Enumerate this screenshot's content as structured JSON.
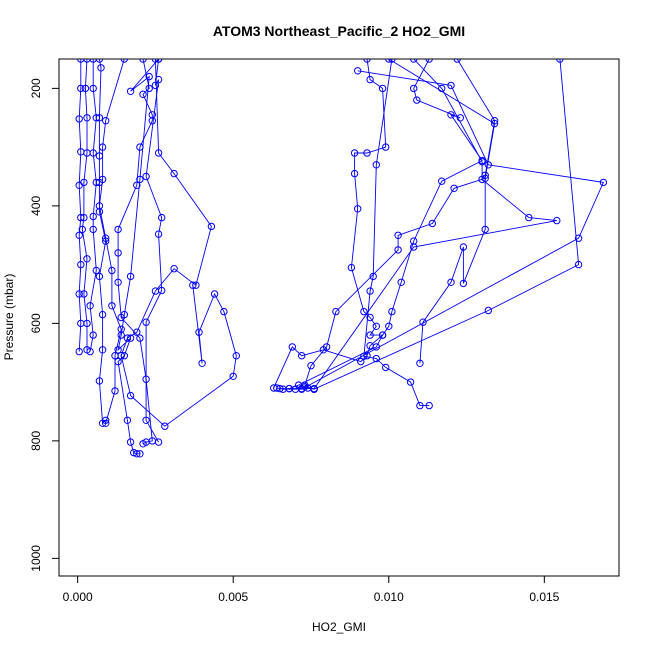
{
  "chart_data": {
    "type": "line",
    "title": "ATOM3 Northeast_Pacific_2 HO2_GMI",
    "xlabel": "HO2_GMI",
    "ylabel": "Pressure (mbar)",
    "xlim": [
      -0.0006,
      0.0174
    ],
    "ylim": [
      1030,
      150
    ],
    "y_reversed": true,
    "x_ticks": [
      0.0,
      0.005,
      0.01,
      0.015
    ],
    "x_tick_labels": [
      "0.000",
      "0.005",
      "0.010",
      "0.015"
    ],
    "y_ticks": [
      200,
      400,
      600,
      800,
      1000
    ],
    "y_tick_labels": [
      "200",
      "400",
      "600",
      "800",
      "1000"
    ],
    "grid": false,
    "legend": "none",
    "series_color": "#0000ff",
    "series": [
      {
        "values": [
          [
            0.0001,
            150
          ],
          [
            0.0001,
            200
          ],
          [
            5e-05,
            252
          ],
          [
            0.0001,
            308
          ],
          [
            5e-05,
            365
          ],
          [
            0.0001,
            420
          ],
          [
            5e-05,
            450
          ],
          [
            0.0001,
            500
          ],
          [
            5e-05,
            550
          ],
          [
            0.0001,
            600
          ],
          [
            5e-05,
            648
          ]
        ]
      },
      {
        "values": [
          [
            0.0003,
            150
          ],
          [
            0.00025,
            200
          ],
          [
            0.0003,
            250
          ],
          [
            0.0003,
            310
          ],
          [
            0.0002,
            360
          ],
          [
            0.0002,
            420
          ],
          [
            0.00015,
            440
          ],
          [
            0.0003,
            490
          ],
          [
            0.0002,
            550
          ],
          [
            0.0003,
            600
          ],
          [
            0.0003,
            645
          ]
        ]
      },
      {
        "values": [
          [
            0.0005,
            150
          ],
          [
            0.0005,
            200
          ],
          [
            0.0006,
            250
          ],
          [
            0.0005,
            310
          ],
          [
            0.0006,
            360
          ],
          [
            0.0005,
            418
          ],
          [
            0.0005,
            440
          ],
          [
            0.0006,
            510
          ],
          [
            0.0004,
            570
          ],
          [
            0.0005,
            620
          ],
          [
            0.0004,
            648
          ]
        ]
      },
      {
        "values": [
          [
            0.0007,
            150
          ],
          [
            0.00075,
            165
          ],
          [
            0.0007,
            250
          ],
          [
            0.0007,
            315
          ],
          [
            0.0007,
            360
          ],
          [
            0.0007,
            410
          ],
          [
            0.0009,
            460
          ],
          [
            0.0007,
            520
          ],
          [
            0.0008,
            585
          ],
          [
            0.0008,
            645
          ],
          [
            0.0007,
            698
          ],
          [
            0.0008,
            770
          ],
          [
            0.0009,
            765
          ]
        ]
      },
      {
        "values": [
          [
            0.0015,
            150
          ],
          [
            0.0009,
            255
          ],
          [
            0.0008,
            300
          ],
          [
            0.0008,
            355
          ],
          [
            0.0007,
            400
          ],
          [
            0.0009,
            455
          ],
          [
            0.0011,
            510
          ],
          [
            0.0011,
            570
          ],
          [
            0.0014,
            610
          ],
          [
            0.0012,
            655
          ],
          [
            0.0012,
            715
          ],
          [
            0.0009,
            770
          ]
        ]
      },
      {
        "values": [
          [
            0.0026,
            150
          ],
          [
            0.0017,
            205
          ],
          [
            0.0023,
            180
          ],
          [
            0.002,
            355
          ],
          [
            0.0017,
            520
          ],
          [
            0.0015,
            585
          ],
          [
            0.0014,
            620
          ],
          [
            0.0013,
            645
          ],
          [
            0.0017,
            625
          ],
          [
            0.0015,
            655
          ],
          [
            0.0013,
            665
          ],
          [
            0.0016,
            765
          ],
          [
            0.0017,
            802
          ],
          [
            0.0018,
            820
          ],
          [
            0.0019,
            822
          ],
          [
            0.002,
            822
          ]
        ]
      },
      {
        "values": [
          [
            0.0021,
            150
          ],
          [
            0.0023,
            200
          ],
          [
            0.0021,
            210
          ],
          [
            0.0024,
            245
          ],
          [
            0.0024,
            255
          ],
          [
            0.002,
            300
          ],
          [
            0.0019,
            365
          ],
          [
            0.0013,
            440
          ],
          [
            0.0013,
            480
          ],
          [
            0.0013,
            530
          ],
          [
            0.0014,
            590
          ],
          [
            0.002,
            625
          ],
          [
            0.0022,
            695
          ],
          [
            0.0024,
            800
          ],
          [
            0.0022,
            802
          ],
          [
            0.0021,
            805
          ]
        ]
      },
      {
        "values": [
          [
            0.0026,
            150
          ],
          [
            0.0025,
            195
          ],
          [
            0.0026,
            185
          ],
          [
            0.0022,
            350
          ],
          [
            0.0027,
            420
          ],
          [
            0.0026,
            448
          ],
          [
            0.0027,
            544
          ],
          [
            0.0022,
            598
          ],
          [
            0.0022,
            765
          ],
          [
            0.0026,
            802
          ]
        ]
      },
      {
        "values": [
          [
            0.0025,
            150
          ],
          [
            0.0026,
            310
          ],
          [
            0.0031,
            345
          ],
          [
            0.0043,
            435
          ],
          [
            0.0038,
            535
          ],
          [
            0.0031,
            507
          ],
          [
            0.0025,
            545
          ],
          [
            0.0019,
            615
          ],
          [
            0.0016,
            625
          ],
          [
            0.0014,
            655
          ],
          [
            0.0017,
            723
          ],
          [
            0.0028,
            775
          ],
          [
            0.005,
            690
          ],
          [
            0.0051,
            655
          ],
          [
            0.0047,
            580
          ],
          [
            0.0044,
            550
          ],
          [
            0.0039,
            615
          ],
          [
            0.004,
            668
          ],
          [
            0.0037,
            535
          ]
        ]
      },
      {
        "values": [
          [
            0.0093,
            150
          ],
          [
            0.0094,
            185
          ],
          [
            0.0098,
            200
          ],
          [
            0.0099,
            300
          ],
          [
            0.0093,
            310
          ],
          [
            0.0089,
            310
          ],
          [
            0.0089,
            345
          ],
          [
            0.009,
            405
          ],
          [
            0.0088,
            505
          ],
          [
            0.0092,
            580
          ],
          [
            0.0094,
            590
          ],
          [
            0.0096,
            605
          ],
          [
            0.0094,
            620
          ],
          [
            0.0098,
            620
          ],
          [
            0.0094,
            638
          ],
          [
            0.0093,
            655
          ],
          [
            0.0091,
            665
          ],
          [
            0.0079,
            645
          ],
          [
            0.0072,
            655
          ],
          [
            0.0069,
            640
          ],
          [
            0.0063,
            710
          ]
        ]
      },
      {
        "values": [
          [
            0.0101,
            150
          ],
          [
            0.0096,
            330
          ],
          [
            0.0095,
            520
          ],
          [
            0.0094,
            545
          ],
          [
            0.0092,
            656
          ],
          [
            0.0096,
            660
          ],
          [
            0.0099,
            675
          ],
          [
            0.0107,
            700
          ],
          [
            0.011,
            740
          ],
          [
            0.0113,
            740
          ]
        ]
      },
      {
        "values": [
          [
            0.0113,
            150
          ],
          [
            0.0108,
            200
          ],
          [
            0.0109,
            220
          ],
          [
            0.0123,
            250
          ],
          [
            0.012,
            245
          ],
          [
            0.013,
            323
          ],
          [
            0.0117,
            358
          ],
          [
            0.0108,
            460
          ],
          [
            0.0104,
            530
          ],
          [
            0.0101,
            580
          ],
          [
            0.01,
            605
          ],
          [
            0.0098,
            620
          ],
          [
            0.0096,
            640
          ],
          [
            0.0071,
            705
          ],
          [
            0.0068,
            711
          ],
          [
            0.0065,
            711
          ]
        ]
      },
      {
        "values": [
          [
            0.0122,
            150
          ],
          [
            0.0134,
            255
          ],
          [
            0.0131,
            348
          ],
          [
            0.0131,
            440
          ],
          [
            0.0124,
            532
          ],
          [
            0.0124,
            470
          ],
          [
            0.012,
            530
          ],
          [
            0.0111,
            598
          ],
          [
            0.011,
            668
          ]
        ]
      },
      {
        "values": [
          [
            0.0108,
            150
          ],
          [
            0.0117,
            200
          ],
          [
            0.013,
            325
          ],
          [
            0.013,
            355
          ],
          [
            0.0145,
            420
          ],
          [
            0.0154,
            425
          ],
          [
            0.0108,
            470
          ],
          [
            0.0076,
            711
          ],
          [
            0.0072,
            711
          ],
          [
            0.0068,
            711
          ]
        ]
      },
      {
        "values": [
          [
            0.009,
            170
          ],
          [
            0.012,
            195
          ],
          [
            0.0132,
            330
          ],
          [
            0.0169,
            360
          ],
          [
            0.0161,
            455
          ],
          [
            0.0072,
            712
          ],
          [
            0.007,
            712
          ],
          [
            0.0066,
            712
          ],
          [
            0.0064,
            710
          ]
        ]
      },
      {
        "values": [
          [
            0.01,
            150
          ],
          [
            0.0134,
            260
          ],
          [
            0.0131,
            353
          ],
          [
            0.0121,
            370
          ],
          [
            0.0114,
            430
          ],
          [
            0.0103,
            450
          ],
          [
            0.0103,
            475
          ],
          [
            0.0083,
            580
          ],
          [
            0.008,
            640
          ],
          [
            0.0075,
            672
          ],
          [
            0.0073,
            705
          ],
          [
            0.0076,
            712
          ]
        ]
      },
      {
        "values": [
          [
            0.0155,
            150
          ],
          [
            0.0161,
            500
          ],
          [
            0.0132,
            578
          ],
          [
            0.0076,
            712
          ],
          [
            0.0074,
            710
          ],
          [
            0.0073,
            708
          ]
        ]
      }
    ]
  }
}
